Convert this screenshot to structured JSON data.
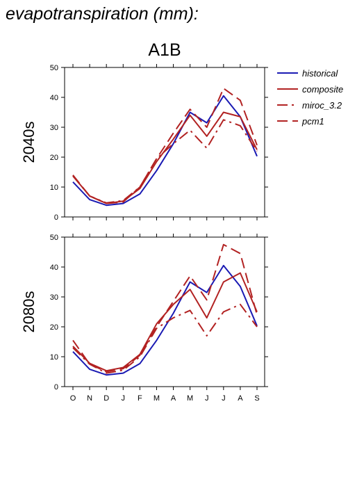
{
  "page": {
    "title": "evapotranspiration (mm):"
  },
  "chart_data": {
    "type": "line",
    "scenario": "A1B",
    "categories": [
      "O",
      "N",
      "D",
      "J",
      "F",
      "M",
      "A",
      "M",
      "J",
      "J",
      "A",
      "S"
    ],
    "ylim": [
      0,
      50
    ],
    "yticks": [
      0,
      10,
      20,
      30,
      40,
      50
    ],
    "grid": false,
    "legend_position": "right",
    "legend": [
      {
        "name": "historical",
        "color": "#1a1ab3",
        "dash": "solid"
      },
      {
        "name": "composite",
        "color": "#b22222",
        "dash": "solid"
      },
      {
        "name": "miroc_3.2",
        "color": "#b22222",
        "dash": "dashdot"
      },
      {
        "name": "pcm1",
        "color": "#b22222",
        "dash": "dashed"
      }
    ],
    "panels": [
      {
        "row_label": "2040s",
        "series": [
          {
            "name": "historical",
            "values": [
              11.7,
              5.8,
              3.9,
              4.5,
              7.7,
              15.5,
              24.5,
              35.0,
              31.5,
              40.5,
              33.5,
              20.3
            ]
          },
          {
            "name": "composite",
            "values": [
              13.7,
              7.0,
              4.5,
              5.3,
              9.5,
              18.5,
              26.0,
              34.0,
              27.0,
              35.0,
              33.5,
              22.5
            ]
          },
          {
            "name": "miroc_3.2",
            "values": [
              13.7,
              7.0,
              4.7,
              5.5,
              10.0,
              19.5,
              24.5,
              29.0,
              23.0,
              32.5,
              30.5,
              22.0
            ]
          },
          {
            "name": "pcm1",
            "values": [
              14.0,
              7.0,
              4.5,
              5.0,
              10.0,
              19.5,
              28.0,
              36.0,
              30.0,
              43.0,
              39.0,
              24.0
            ]
          }
        ]
      },
      {
        "row_label": "2080s",
        "series": [
          {
            "name": "historical",
            "values": [
              11.7,
              5.8,
              3.9,
              4.5,
              7.7,
              15.5,
              24.5,
              35.0,
              31.5,
              40.5,
              33.5,
              20.3
            ]
          },
          {
            "name": "composite",
            "values": [
              13.5,
              7.8,
              5.3,
              6.4,
              10.8,
              21.0,
              27.5,
              32.5,
              23.0,
              35.0,
              38.0,
              25.0
            ]
          },
          {
            "name": "miroc_3.2",
            "values": [
              13.0,
              7.5,
              4.5,
              5.5,
              10.0,
              19.5,
              23.0,
              25.5,
              17.0,
              25.0,
              27.5,
              20.0
            ]
          },
          {
            "name": "pcm1",
            "values": [
              15.5,
              7.5,
              5.0,
              6.0,
              10.5,
              20.0,
              28.5,
              37.0,
              29.0,
              47.5,
              44.5,
              24.0
            ]
          }
        ]
      }
    ]
  }
}
